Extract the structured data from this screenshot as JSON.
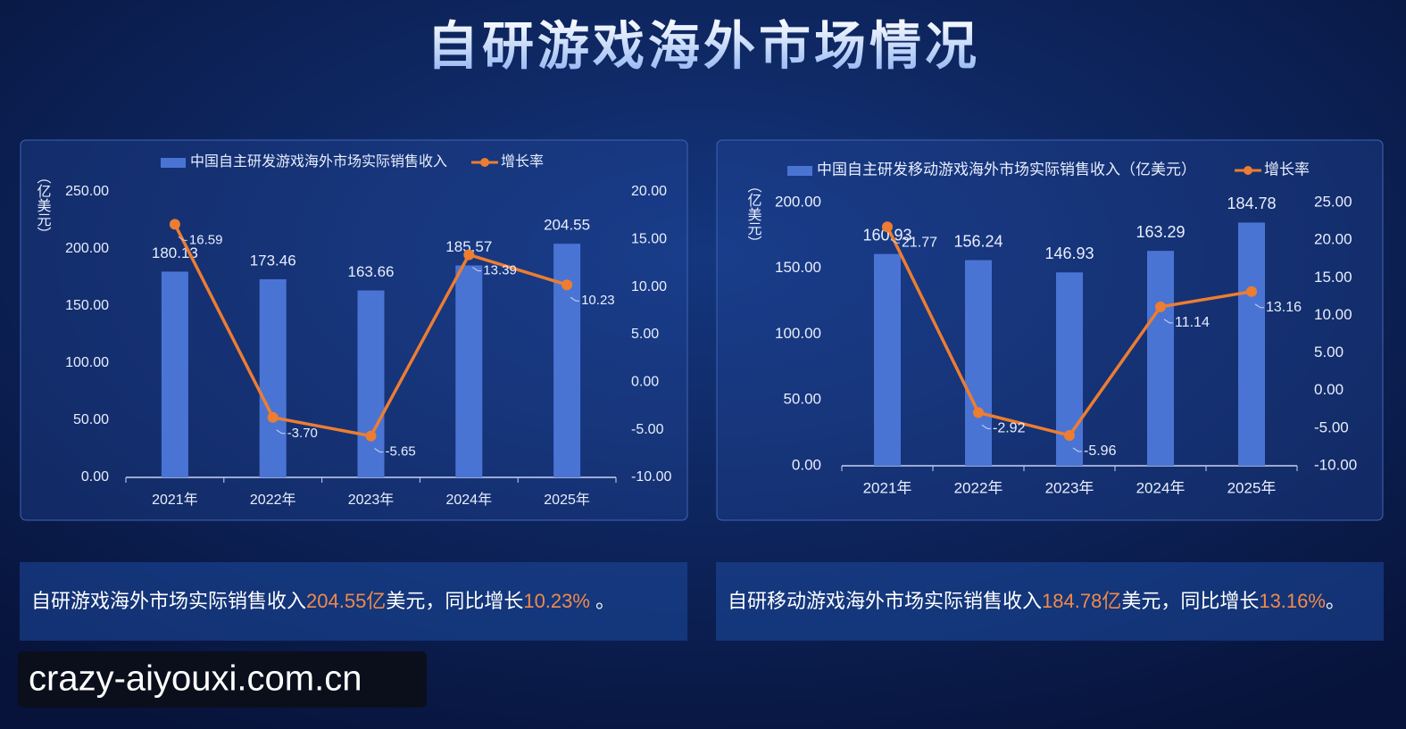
{
  "header": {
    "title": "自研游戏海外市场情况"
  },
  "chart_data": [
    {
      "type": "combo",
      "y_label": "（亿美元）",
      "categories": [
        "2021年",
        "2022年",
        "2023年",
        "2024年",
        "2025年"
      ],
      "series": [
        {
          "name": "中国自主研发游戏海外市场实际销售收入",
          "type": "bar",
          "color": "#4a74d4",
          "values": [
            180.13,
            173.46,
            163.66,
            185.57,
            204.55
          ]
        },
        {
          "name": "增长率",
          "type": "line",
          "axis": "y2",
          "color": "#ed7d31",
          "values": [
            16.59,
            -3.7,
            -5.65,
            13.39,
            10.23
          ],
          "value_labels": [
            "16.59",
            "-3.70",
            "-5.65",
            "13.39",
            "10.23"
          ]
        }
      ],
      "ylim": [
        0,
        250
      ],
      "yticks": [
        {
          "value": 0,
          "label": "0.00"
        },
        {
          "value": 50,
          "label": "50.00"
        },
        {
          "value": 100,
          "label": "100.00"
        },
        {
          "value": 150,
          "label": "150.00"
        },
        {
          "value": 200,
          "label": "200.00"
        },
        {
          "value": 250,
          "label": "250.00"
        }
      ],
      "y2lim": [
        -10,
        20
      ],
      "y2ticks": [
        {
          "value": -10,
          "label": "-10.00"
        },
        {
          "value": -5,
          "label": "-5.00"
        },
        {
          "value": 0,
          "label": "0.00"
        },
        {
          "value": 5,
          "label": "5.00"
        },
        {
          "value": 10,
          "label": "10.00"
        },
        {
          "value": 15,
          "label": "15.00"
        },
        {
          "value": 20,
          "label": "20.00"
        }
      ]
    },
    {
      "type": "combo",
      "y_label": "（亿美元）",
      "categories": [
        "2021年",
        "2022年",
        "2023年",
        "2024年",
        "2025年"
      ],
      "series": [
        {
          "name": "中国自主研发移动游戏海外市场实际销售收入（亿美元）",
          "type": "bar",
          "color": "#4a74d4",
          "values": [
            160.93,
            156.24,
            146.93,
            163.29,
            184.78
          ]
        },
        {
          "name": "增长率",
          "type": "line",
          "axis": "y2",
          "color": "#ed7d31",
          "values": [
            21.77,
            -2.92,
            -5.96,
            11.14,
            13.16
          ]
        }
      ],
      "ylim": [
        0,
        200
      ],
      "yticks": [
        {
          "value": 0,
          "label": "0.00"
        },
        {
          "value": 50,
          "label": "50.00"
        },
        {
          "value": 100,
          "label": "100.00"
        },
        {
          "value": 150,
          "label": "150.00"
        },
        {
          "value": 200,
          "label": "200.00"
        }
      ],
      "y2lim": [
        -10,
        25
      ],
      "y2ticks": [
        {
          "value": -10,
          "label": "-10.00"
        },
        {
          "value": -5,
          "label": "-5.00"
        },
        {
          "value": 0,
          "label": "0.00"
        },
        {
          "value": 5,
          "label": "5.00"
        },
        {
          "value": 10,
          "label": "10.00"
        },
        {
          "value": 15,
          "label": "15.00"
        },
        {
          "value": 20,
          "label": "20.00"
        },
        {
          "value": 25,
          "label": "25.00"
        }
      ]
    }
  ],
  "summaries": [
    [
      {
        "text": "自研游戏海外市场实际销售收入",
        "color": "#ffffff"
      },
      {
        "text": "204.55亿",
        "color": "#f08a4b"
      },
      {
        "text": "美元，同比增长",
        "color": "#ffffff"
      },
      {
        "text": "10.23%",
        "color": "#f08a4b"
      },
      {
        "text": " 。",
        "color": "#ffffff"
      }
    ],
    [
      {
        "text": "自研移动游戏海外市场实际销售收入",
        "color": "#ffffff"
      },
      {
        "text": "184.78亿",
        "color": "#f08a4b"
      },
      {
        "text": "美元，同比增长",
        "color": "#ffffff"
      },
      {
        "text": "13.16%",
        "color": "#f08a4b"
      },
      {
        "text": "。",
        "color": "#ffffff"
      }
    ]
  ],
  "watermark": "crazy-aiyouxi.com.cn"
}
